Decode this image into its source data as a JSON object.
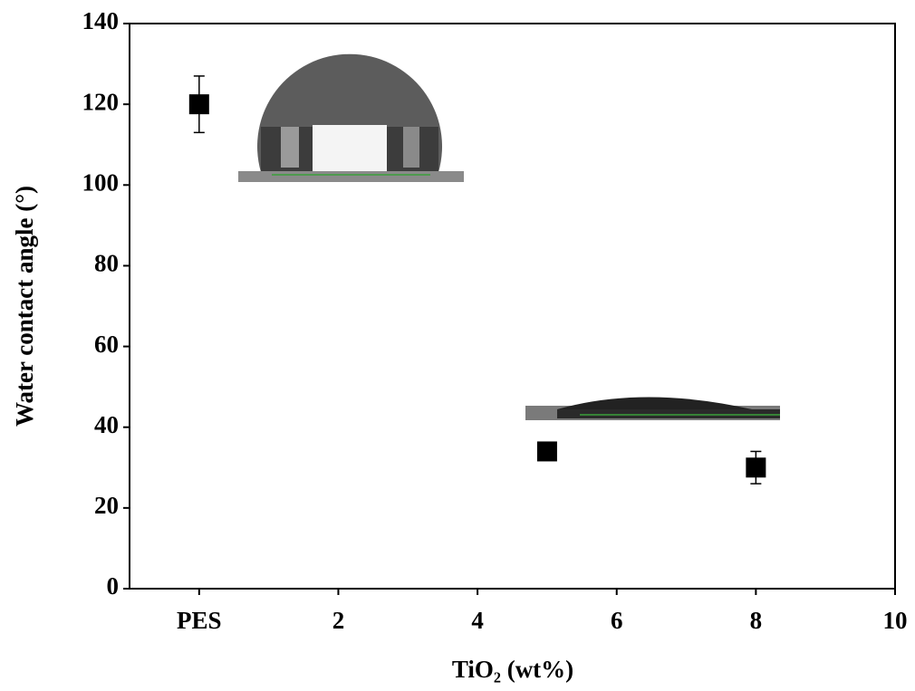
{
  "chart_data": {
    "type": "scatter",
    "x_label": "TiO₂ (wt%)",
    "y_label": "Water contact angle (°)",
    "series": [
      {
        "color": "#000000",
        "x": [
          0,
          5,
          8
        ],
        "values": [
          120,
          34,
          30
        ],
        "errors": [
          7,
          1,
          4
        ]
      }
    ],
    "xlim": [
      -1,
      10
    ],
    "xticks": [
      {
        "value": 0,
        "label": "PES"
      },
      2,
      4,
      6,
      8,
      10
    ],
    "ylim": [
      0,
      140
    ],
    "yticks": [
      0,
      20,
      40,
      60,
      80,
      100,
      120,
      140
    ]
  }
}
